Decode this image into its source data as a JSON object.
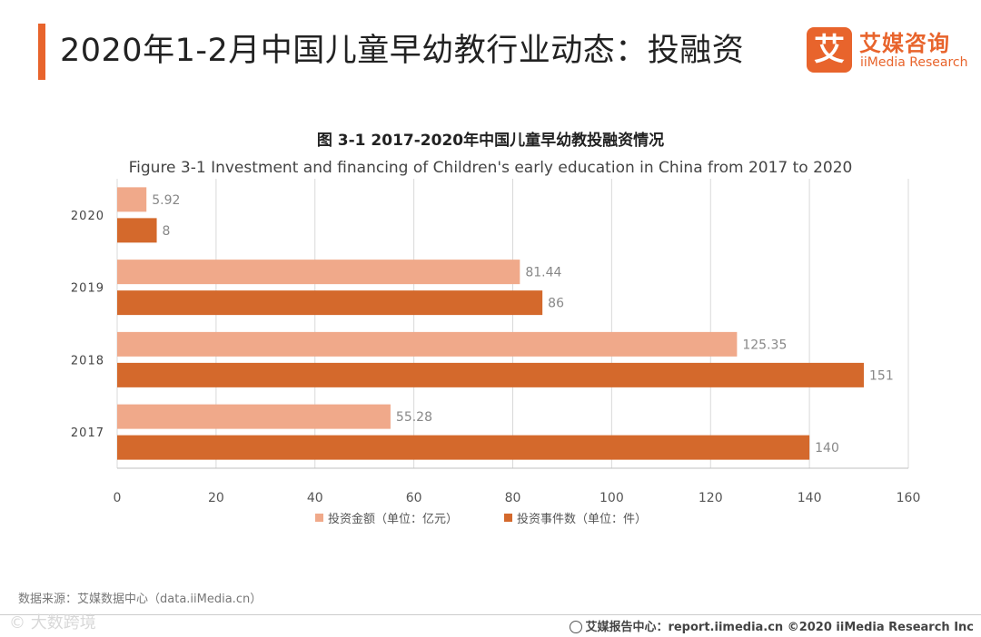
{
  "header": {
    "title": "2020年1-2月中国儿童早幼教行业动态：投融资",
    "logo_mark": "艾",
    "logo_cn": "艾媒咨询",
    "logo_en": "iiMedia Research"
  },
  "colors": {
    "accent": "#e8642c",
    "series_amount": "#f0a98a",
    "series_count": "#d4692c"
  },
  "chart_data": {
    "type": "bar",
    "orientation": "horizontal",
    "title": "图 3-1 2017-2020年中国儿童早幼教投融资情况",
    "subtitle": "Figure 3-1 Investment and financing of Children's early education in China from 2017 to 2020",
    "categories": [
      "2020",
      "2019",
      "2018",
      "2017"
    ],
    "series": [
      {
        "name": "投资金额（单位：亿元）",
        "values": [
          5.92,
          81.44,
          125.35,
          55.28
        ],
        "labels": [
          "5.92",
          "81.44",
          "125.35",
          "55.28"
        ]
      },
      {
        "name": "投资事件数（单位：件）",
        "values": [
          8,
          86,
          151,
          140
        ],
        "labels": [
          "8",
          "86",
          "151",
          "140"
        ]
      }
    ],
    "xlim": [
      0,
      160
    ],
    "xticks": [
      "0",
      "20",
      "40",
      "60",
      "80",
      "100",
      "120",
      "140",
      "160"
    ],
    "grid": true,
    "legend_position": "bottom"
  },
  "footer": {
    "source": "数据来源：艾媒数据中心（data.iiMedia.cn）",
    "watermark": "© 大数跨境",
    "copyright": "艾媒报告中心：report.iimedia.cn  ©2020  iiMedia Research  Inc"
  }
}
